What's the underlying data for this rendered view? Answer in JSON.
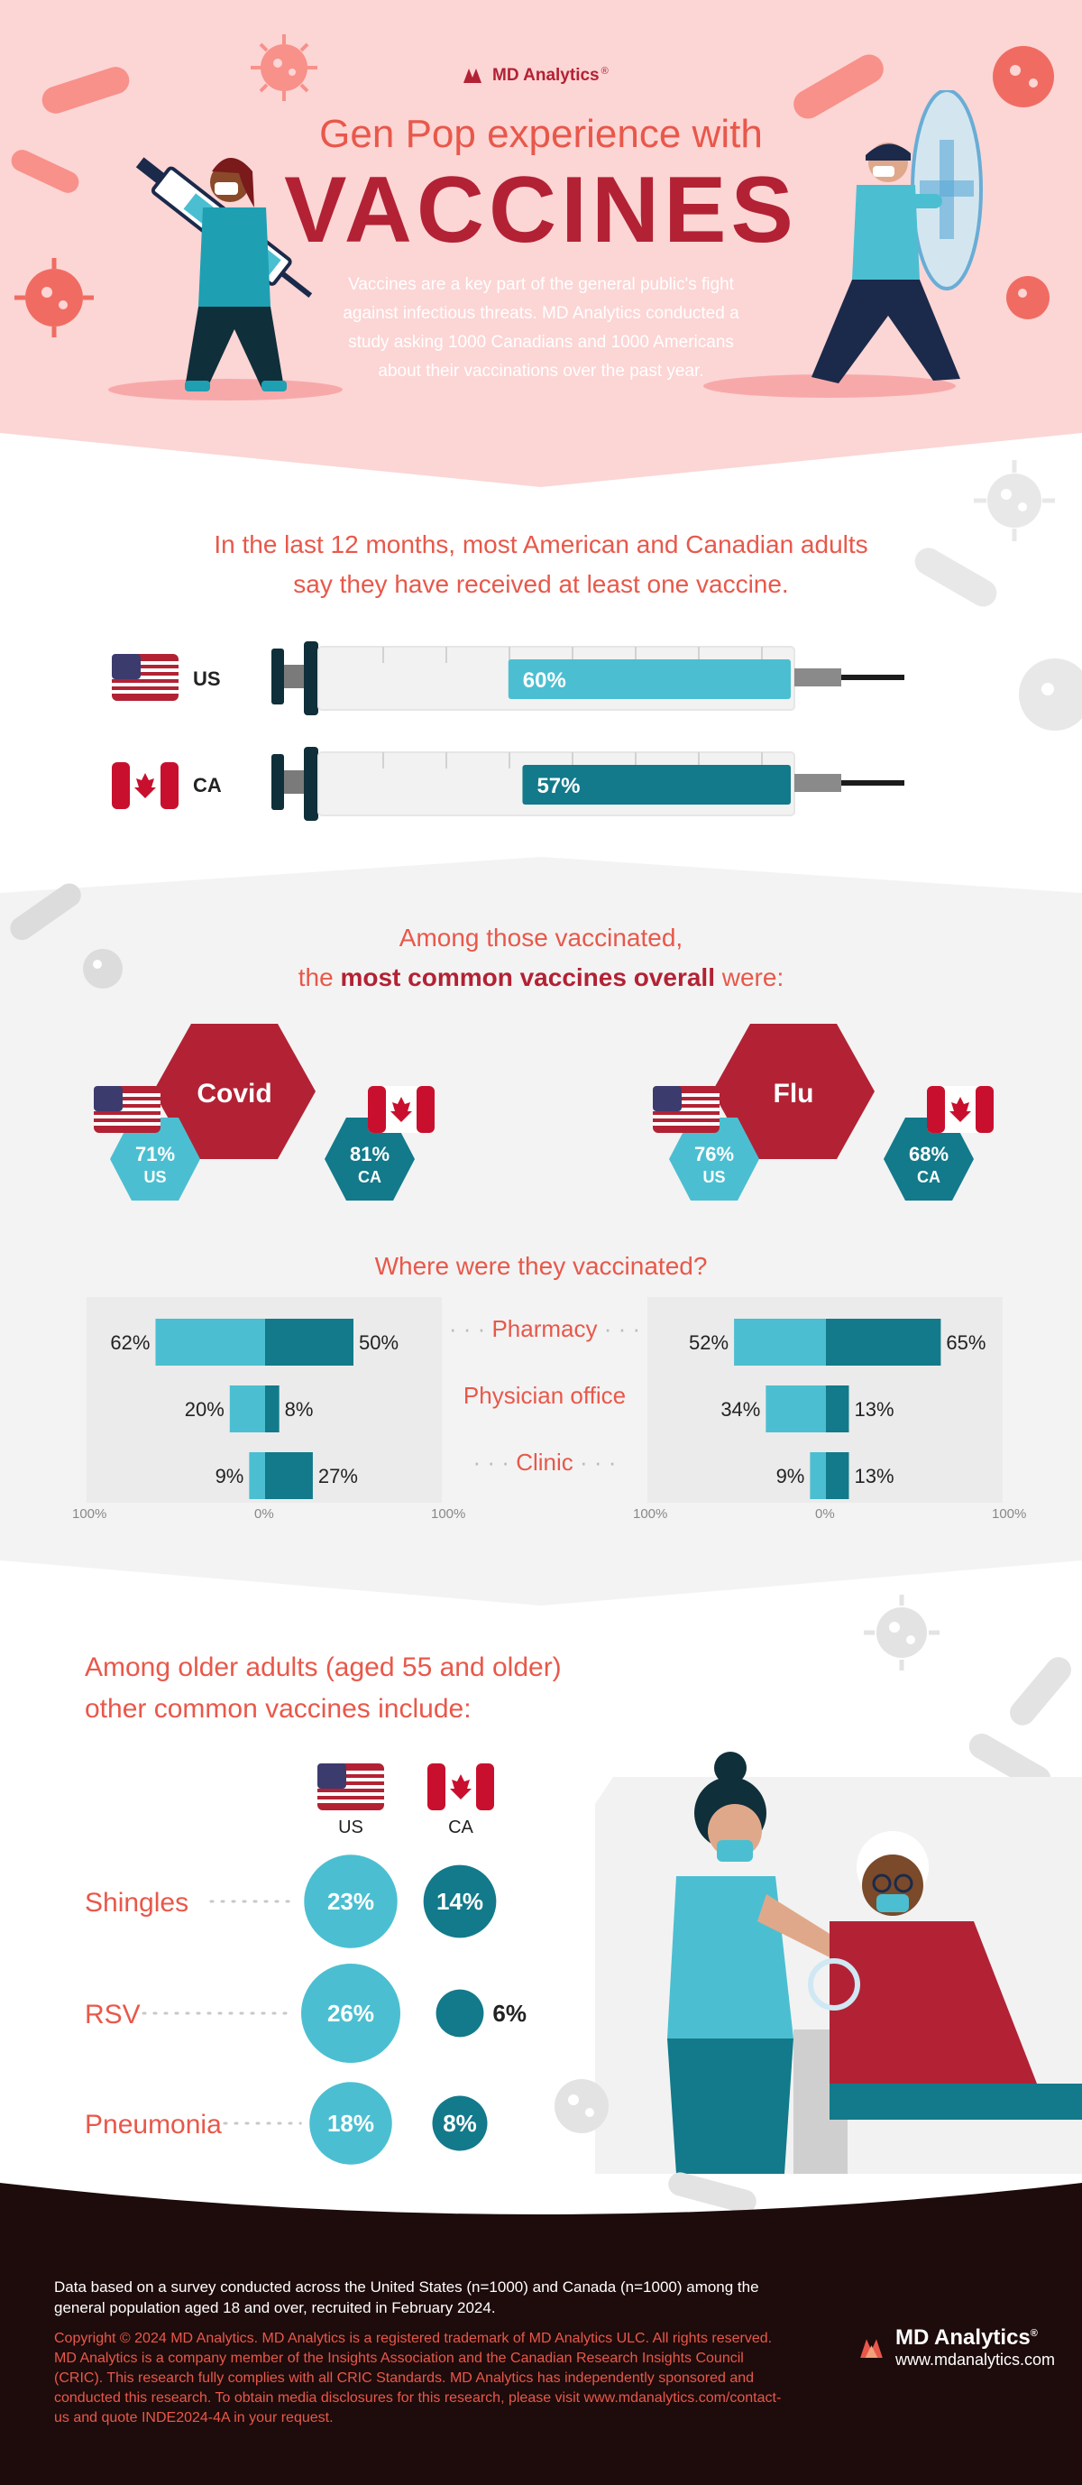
{
  "header": {
    "brand": "MD Analytics",
    "brand_mark": "®",
    "title_line1": "Gen Pop experience with",
    "title_line2": "VACCINES",
    "intro": "Vaccines are a key part of the general public's fight against infectious threats. MD Analytics conducted a study asking 1000 Canadians and 1000 Americans about their vaccinations over the past year."
  },
  "section1": {
    "heading_line1": "In the last 12 months, most American and Canadian adults",
    "heading_line2": "say they have received at least one vaccine."
  },
  "section2": {
    "heading_line1": "Among those vaccinated,",
    "heading_line2_pre": "the ",
    "heading_line2_bold": "most common vaccines overall",
    "heading_line2_post": " were:",
    "where_heading": "Where were they vaccinated?"
  },
  "section3": {
    "heading_line1": "Among older adults (aged 55 and older)",
    "heading_line2": "other common vaccines include:"
  },
  "footer": {
    "data_note": "Data based on a survey conducted across the United States (n=1000) and Canada (n=1000) among the general population aged 18 and over, recruited in February 2024.",
    "copyright": "Copyright © 2024 MD Analytics. MD Analytics is a registered trademark of MD Analytics ULC. All rights reserved. MD Analytics is a company member of the Insights Association and the Canadian Research Insights Council (CRIC). This research fully complies with all CRIC Standards. MD Analytics has independently sponsored and conducted this research. To obtain media disclosures for this research, please visit www.mdanalytics.com/contact-us and quote INDE2024-4A in your request.",
    "brand": "MD Analytics",
    "brand_mark": "®",
    "url": "www.mdanalytics.com"
  },
  "colors": {
    "us": "#4bbfd1",
    "ca": "#127a8a",
    "red": "#b22234",
    "coral": "#e8584a",
    "hero_bg": "#fcd5d5"
  },
  "chart_data": [
    {
      "type": "bar",
      "categories": [
        "US",
        "CA"
      ],
      "values": [
        60,
        57
      ],
      "value_labels": [
        "60%",
        "57%"
      ],
      "ylim": [
        0,
        100
      ]
    },
    {
      "type": "table",
      "items": [
        {
          "vaccine": "Covid",
          "us": 71,
          "ca": 81,
          "us_label": "71%",
          "ca_label": "81%",
          "us_tag": "US",
          "ca_tag": "CA"
        },
        {
          "vaccine": "Flu",
          "us": 76,
          "ca": 68,
          "us_label": "76%",
          "ca_label": "68%",
          "us_tag": "US",
          "ca_tag": "CA"
        }
      ]
    },
    {
      "type": "bar",
      "categories": [
        "Pharmacy",
        "Physician office",
        "Clinic"
      ],
      "panels": [
        {
          "vaccine": "Covid",
          "us": [
            62,
            20,
            9
          ],
          "ca": [
            50,
            8,
            27
          ],
          "us_labels": [
            "62%",
            "20%",
            "9%"
          ],
          "ca_labels": [
            "50%",
            "8%",
            "27%"
          ]
        },
        {
          "vaccine": "Flu",
          "us": [
            52,
            34,
            9
          ],
          "ca": [
            65,
            13,
            13
          ],
          "us_labels": [
            "52%",
            "34%",
            "9%"
          ],
          "ca_labels": [
            "65%",
            "13%",
            "13%"
          ]
        }
      ],
      "ticks": [
        "100%",
        "0%",
        "100%"
      ],
      "xlim": [
        -100,
        100
      ]
    },
    {
      "type": "scatter",
      "categories": [
        "Shingles",
        "RSV",
        "Pneumonia"
      ],
      "series": [
        {
          "name": "US",
          "values": [
            23,
            26,
            18
          ],
          "labels": [
            "23%",
            "26%",
            "18%"
          ]
        },
        {
          "name": "CA",
          "values": [
            14,
            6,
            8
          ],
          "labels": [
            "14%",
            "6%",
            "8%"
          ]
        }
      ]
    }
  ]
}
